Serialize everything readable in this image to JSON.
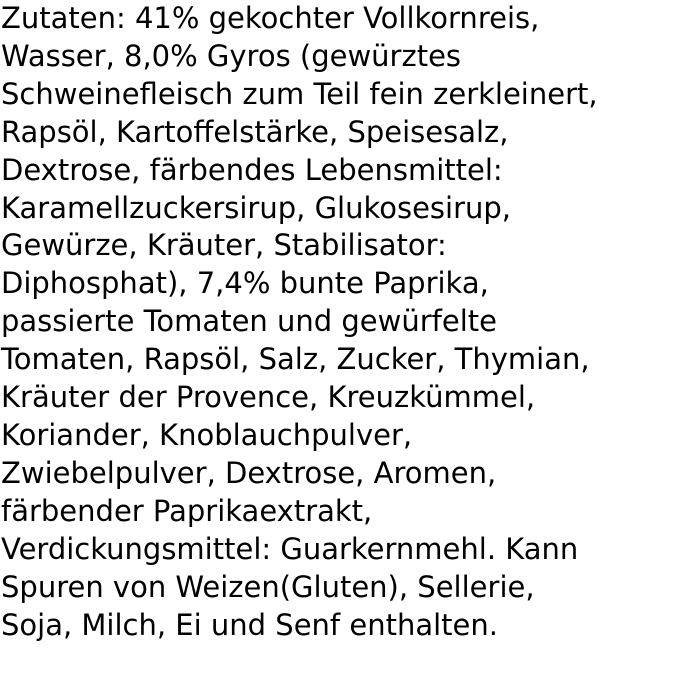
{
  "ingredients": {
    "lines": [
      "Zutaten: 41% gekochter Vollkornreis,",
      "Wasser, 8,0% Gyros (gewürztes",
      "Schweinefleisch zum Teil fein zerkleinert,",
      "Rapsöl, Kartoffelstärke, Speisesalz,",
      "Dextrose, färbendes Lebensmittel:",
      "Karamellzuckersirup, Glukosesirup,",
      "Gewürze, Kräuter, Stabilisator:",
      "Diphosphat), 7,4% bunte Paprika,",
      "passierte Tomaten und gewürfelte",
      "Tomaten, Rapsöl, Salz, Zucker, Thymian,",
      "Kräuter der Provence, Kreuzkümmel,",
      "Koriander, Knoblauchpulver,",
      "Zwiebelpulver, Dextrose, Aromen,",
      "färbender Paprikaextrakt,",
      "Verdickungsmittel: Guarkernmehl. Kann",
      "Spuren von Weizen(Gluten), Sellerie,",
      "Soja, Milch, Ei und Senf enthalten."
    ]
  }
}
